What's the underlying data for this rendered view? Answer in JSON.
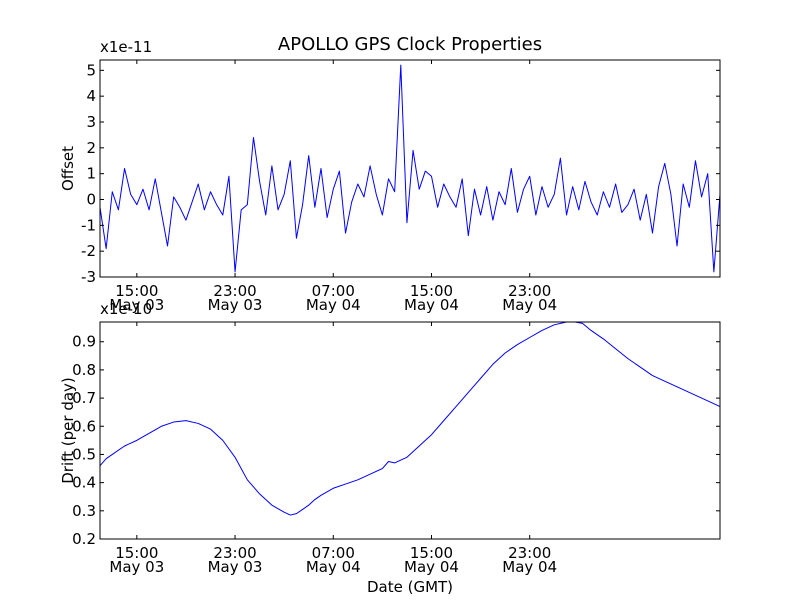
{
  "chart_data": [
    {
      "type": "line",
      "title": "APOLLO GPS Clock Properties",
      "ylabel": "Offset",
      "xlabel": "",
      "scale_label": "x1e-11",
      "ylim": [
        -3,
        5.4
      ],
      "xlim": [
        12.0,
        62.5
      ],
      "yticks": [
        -3,
        -2,
        -1,
        0,
        1,
        2,
        3,
        4,
        5
      ],
      "ytick_labels": [
        "-3",
        "-2",
        "-1",
        "0",
        "1",
        "2",
        "3",
        "4",
        "5"
      ],
      "xticks": [
        15,
        23,
        31,
        39,
        47
      ],
      "xtick_time": [
        "15:00",
        "23:00",
        "07:00",
        "15:00",
        "23:00"
      ],
      "xtick_date": [
        "May 03",
        "May 03",
        "May 04",
        "May 04",
        "May 04"
      ],
      "series": [
        {
          "name": "offset",
          "color": "#0000ff",
          "x": [
            12.0,
            12.5,
            13.0,
            13.5,
            14.0,
            14.5,
            15.0,
            15.5,
            16.0,
            16.5,
            17.0,
            17.5,
            18.0,
            18.5,
            19.0,
            19.5,
            20.0,
            20.5,
            21.0,
            21.5,
            22.0,
            22.5,
            23.0,
            23.5,
            24.0,
            24.5,
            25.0,
            25.5,
            26.0,
            26.5,
            27.0,
            27.5,
            28.0,
            28.5,
            29.0,
            29.5,
            30.0,
            30.5,
            31.0,
            31.5,
            32.0,
            32.5,
            33.0,
            33.5,
            34.0,
            34.5,
            35.0,
            35.5,
            36.0,
            36.5,
            37.0,
            37.5,
            38.0,
            38.5,
            39.0,
            39.5,
            40.0,
            40.5,
            41.0,
            41.5,
            42.0,
            42.5,
            43.0,
            43.5,
            44.0,
            44.5,
            45.0,
            45.5,
            46.0,
            46.5,
            47.0,
            47.5,
            48.0,
            48.5,
            49.0,
            49.5,
            50.0,
            50.5,
            51.0,
            51.5,
            52.0,
            52.5,
            53.0,
            53.5,
            54.0,
            54.5,
            55.0,
            55.5,
            56.0,
            56.5,
            57.0,
            57.5,
            58.0,
            58.5,
            59.0,
            59.5,
            60.0,
            60.5,
            61.0,
            61.5,
            62.0,
            62.5
          ],
          "y": [
            -0.3,
            -1.9,
            0.3,
            -0.4,
            1.2,
            0.2,
            -0.2,
            0.4,
            -0.4,
            0.8,
            -0.5,
            -1.8,
            0.1,
            -0.3,
            -0.8,
            -0.1,
            0.6,
            -0.4,
            0.3,
            -0.2,
            -0.6,
            0.9,
            -2.8,
            -0.4,
            -0.2,
            2.4,
            0.7,
            -0.6,
            1.3,
            -0.4,
            0.2,
            1.5,
            -1.5,
            -0.2,
            1.7,
            -0.3,
            1.2,
            -0.7,
            0.4,
            1.1,
            -1.3,
            -0.1,
            0.6,
            0.1,
            1.3,
            0.2,
            -0.6,
            0.8,
            0.3,
            5.2,
            -0.9,
            1.9,
            0.4,
            1.1,
            0.9,
            -0.3,
            0.6,
            0.1,
            -0.3,
            0.8,
            -1.4,
            0.4,
            -0.6,
            0.5,
            -0.8,
            0.3,
            -0.2,
            1.2,
            -0.5,
            0.4,
            0.9,
            -0.6,
            0.5,
            -0.3,
            0.2,
            1.6,
            -0.6,
            0.5,
            -0.4,
            0.7,
            -0.1,
            -0.6,
            0.3,
            -0.3,
            0.6,
            -0.5,
            -0.2,
            0.4,
            -0.8,
            0.2,
            -1.3,
            0.5,
            1.4,
            0.2,
            -1.8,
            0.6,
            -0.3,
            1.5,
            0.1,
            1.0,
            -2.8,
            0.2
          ]
        }
      ]
    },
    {
      "type": "line",
      "title": "",
      "ylabel": "Drift (per day)",
      "xlabel": "Date (GMT)",
      "scale_label": "x1e-10",
      "ylim": [
        0.2,
        0.97
      ],
      "xlim": [
        12.0,
        62.5
      ],
      "yticks": [
        0.2,
        0.3,
        0.4,
        0.5,
        0.6,
        0.7,
        0.8,
        0.9
      ],
      "ytick_labels": [
        "0.2",
        "0.3",
        "0.4",
        "0.5",
        "0.6",
        "0.7",
        "0.8",
        "0.9"
      ],
      "xticks": [
        15,
        23,
        31,
        39,
        47
      ],
      "xtick_time": [
        "15:00",
        "23:00",
        "07:00",
        "15:00",
        "23:00"
      ],
      "xtick_date": [
        "May 03",
        "May 03",
        "May 04",
        "May 04",
        "May 04"
      ],
      "series": [
        {
          "name": "drift",
          "color": "#0000ff",
          "x": [
            12.0,
            12.5,
            13.0,
            14.0,
            15.0,
            16.0,
            17.0,
            18.0,
            19.0,
            20.0,
            21.0,
            22.0,
            23.0,
            24.0,
            25.0,
            26.0,
            27.0,
            27.5,
            28.0,
            28.5,
            29.0,
            29.5,
            30.0,
            31.0,
            32.0,
            33.0,
            34.0,
            35.0,
            35.5,
            36.0,
            36.5,
            37.0,
            38.0,
            39.0,
            40.0,
            41.0,
            42.0,
            43.0,
            44.0,
            45.0,
            46.0,
            47.0,
            48.0,
            49.0,
            50.0,
            50.7,
            51.3,
            52.0,
            53.0,
            54.0,
            55.0,
            56.0,
            57.0,
            58.0,
            59.0,
            60.0,
            61.0,
            62.0,
            62.5
          ],
          "y": [
            0.46,
            0.485,
            0.5,
            0.53,
            0.55,
            0.575,
            0.6,
            0.615,
            0.62,
            0.61,
            0.59,
            0.55,
            0.49,
            0.41,
            0.36,
            0.32,
            0.295,
            0.285,
            0.29,
            0.305,
            0.32,
            0.34,
            0.355,
            0.38,
            0.395,
            0.41,
            0.43,
            0.45,
            0.475,
            0.47,
            0.48,
            0.49,
            0.53,
            0.57,
            0.62,
            0.67,
            0.72,
            0.77,
            0.82,
            0.86,
            0.89,
            0.915,
            0.94,
            0.96,
            0.97,
            0.97,
            0.965,
            0.94,
            0.91,
            0.875,
            0.84,
            0.81,
            0.78,
            0.76,
            0.74,
            0.72,
            0.7,
            0.68,
            0.67
          ]
        }
      ]
    }
  ]
}
